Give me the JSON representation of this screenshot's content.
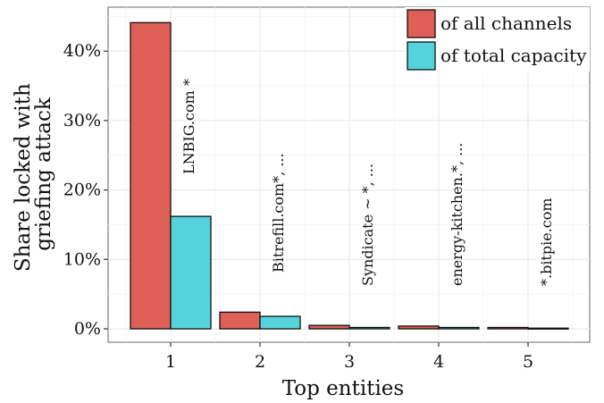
{
  "chart_data": {
    "type": "bar",
    "xlabel": "Top entities",
    "ylabel_lines": [
      "Share locked with",
      "griefing attack"
    ],
    "categories": [
      "1",
      "2",
      "3",
      "4",
      "5"
    ],
    "ylim": [
      0,
      0.46
    ],
    "y_ticks": [
      0,
      0.1,
      0.2,
      0.3,
      0.4
    ],
    "y_tick_labels": [
      "0%",
      "10%",
      "20%",
      "30%",
      "40%"
    ],
    "grid": true,
    "legend_position": "top-right",
    "series": [
      {
        "name": "of all channels",
        "color": "#de5f55",
        "values": [
          0.441,
          0.024,
          0.005,
          0.004,
          0.002
        ]
      },
      {
        "name": "of total capacity",
        "color": "#55d3dc",
        "values": [
          0.162,
          0.018,
          0.002,
          0.002,
          0.001
        ]
      }
    ],
    "annotations": [
      "LNBIG.com *",
      "Bitrefill.com*, ...",
      "Syndicate ~ *, ...",
      "energy-kitchen.*, ...",
      "*.bitpie.com"
    ]
  }
}
